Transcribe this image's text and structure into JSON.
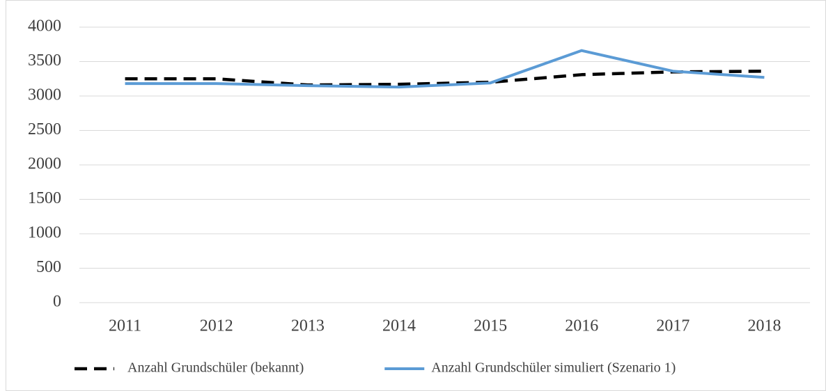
{
  "chart_data": {
    "type": "line",
    "categories": [
      "2011",
      "2012",
      "2013",
      "2014",
      "2015",
      "2016",
      "2017",
      "2018"
    ],
    "series": [
      {
        "name": "Anzahl Grundschüler (bekannt)",
        "color": "#000000",
        "style": "dashed",
        "values": [
          3250,
          3250,
          3160,
          3170,
          3200,
          3310,
          3350,
          3360
        ]
      },
      {
        "name": "Anzahl Grundschüler simuliert (Szenario 1)",
        "color": "#5b9bd5",
        "style": "solid",
        "values": [
          3180,
          3180,
          3150,
          3130,
          3190,
          3660,
          3360,
          3270
        ]
      }
    ],
    "ylim": [
      0,
      4000
    ],
    "yticks": [
      0,
      500,
      1000,
      1500,
      2000,
      2500,
      3000,
      3500,
      4000
    ],
    "grid": true,
    "legend": "bottom"
  }
}
